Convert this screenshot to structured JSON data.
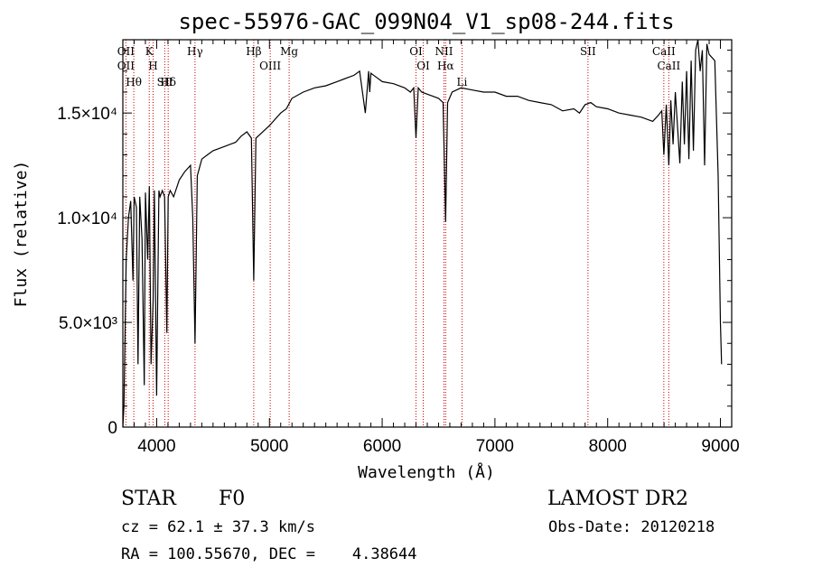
{
  "chart_data": {
    "type": "line",
    "title": "spec-55976-GAC_099N04_V1_sp08-244.fits",
    "xlabel": "Wavelength (Å)",
    "ylabel": "Flux (relative)",
    "xlim": [
      3700,
      9100
    ],
    "ylim": [
      0,
      18500
    ],
    "x_ticks": [
      {
        "value": 4000,
        "label": "4000"
      },
      {
        "value": 5000,
        "label": "5000"
      },
      {
        "value": 6000,
        "label": "6000"
      },
      {
        "value": 7000,
        "label": "7000"
      },
      {
        "value": 8000,
        "label": "8000"
      },
      {
        "value": 9000,
        "label": "9000"
      }
    ],
    "y_ticks": [
      {
        "value": 0,
        "label": "0"
      },
      {
        "value": 5000,
        "label": "5.0×10³"
      },
      {
        "value": 10000,
        "label": "1.0×10⁴"
      },
      {
        "value": 15000,
        "label": "1.5×10⁴"
      }
    ],
    "grid": false,
    "series": [
      {
        "color": "#000000",
        "x": [
          3700,
          3710,
          3730,
          3750,
          3770,
          3790,
          3800,
          3820,
          3835,
          3850,
          3870,
          3890,
          3900,
          3920,
          3935,
          3950,
          3968,
          3980,
          4000,
          4020,
          4030,
          4050,
          4070,
          4090,
          4102,
          4120,
          4150,
          4200,
          4250,
          4300,
          4320,
          4340,
          4360,
          4400,
          4450,
          4500,
          4600,
          4700,
          4750,
          4800,
          4840,
          4861,
          4880,
          4920,
          5000,
          5050,
          5100,
          5150,
          5200,
          5300,
          5400,
          5500,
          5600,
          5700,
          5750,
          5800,
          5850,
          5880,
          5890,
          5900,
          5950,
          6000,
          6100,
          6200,
          6250,
          6280,
          6300,
          6320,
          6350,
          6400,
          6450,
          6500,
          6540,
          6563,
          6580,
          6620,
          6700,
          6800,
          6900,
          7000,
          7100,
          7200,
          7300,
          7400,
          7500,
          7600,
          7700,
          7750,
          7800,
          7850,
          7900,
          8000,
          8100,
          8200,
          8300,
          8400,
          8450,
          8480,
          8498,
          8520,
          8542,
          8560,
          8580,
          8600,
          8640,
          8662,
          8680,
          8700,
          8720,
          8740,
          8760,
          8780,
          8800,
          8820,
          8840,
          8860,
          8880,
          8900,
          8950,
          8980,
          9000,
          9010
        ],
        "y": [
          0,
          1000,
          8000,
          10000,
          10800,
          7000,
          11000,
          10500,
          3000,
          11000,
          9000,
          2000,
          11200,
          8000,
          11500,
          3000,
          6000,
          11300,
          1500,
          11300,
          11000,
          11300,
          11000,
          4500,
          11000,
          11300,
          11000,
          11800,
          12200,
          12500,
          10000,
          4000,
          12000,
          12800,
          13000,
          13200,
          13400,
          13600,
          13900,
          14100,
          13800,
          7000,
          13800,
          14000,
          14400,
          14700,
          15000,
          15200,
          15700,
          16000,
          16200,
          16300,
          16500,
          16700,
          16800,
          17000,
          15000,
          17000,
          16000,
          16900,
          16700,
          16500,
          16400,
          16200,
          16000,
          16200,
          13800,
          16200,
          16000,
          15900,
          15800,
          15700,
          15500,
          9800,
          15500,
          16000,
          16200,
          16100,
          16000,
          16000,
          15800,
          15800,
          15600,
          15500,
          15400,
          15100,
          15200,
          15000,
          15400,
          15500,
          15300,
          15200,
          15000,
          14900,
          14800,
          14600,
          14900,
          15100,
          13000,
          15400,
          12500,
          15600,
          13500,
          16000,
          12600,
          16500,
          13500,
          17000,
          12800,
          17500,
          13200,
          18000,
          18500,
          17000,
          18000,
          12500,
          18300,
          17800,
          17500,
          12000,
          5000,
          3000
        ]
      }
    ],
    "line_markers": [
      {
        "wavelength": 3727,
        "labels": [
          "OII",
          "OII"
        ]
      },
      {
        "wavelength": 3797,
        "labels": [
          "Hθ"
        ]
      },
      {
        "wavelength": 3934,
        "labels": [
          "K"
        ]
      },
      {
        "wavelength": 3968,
        "labels": [
          "H"
        ]
      },
      {
        "wavelength": 4072,
        "labels": [
          "SII"
        ]
      },
      {
        "wavelength": 4102,
        "labels": [
          "Hδ"
        ]
      },
      {
        "wavelength": 4340,
        "labels": [
          "Hγ"
        ]
      },
      {
        "wavelength": 4861,
        "labels": [
          "Hβ"
        ]
      },
      {
        "wavelength": 5007,
        "labels": [
          "OIII"
        ]
      },
      {
        "wavelength": 5175,
        "labels": [
          "Mg"
        ]
      },
      {
        "wavelength": 6300,
        "labels": [
          "OI"
        ]
      },
      {
        "wavelength": 6364,
        "labels": [
          "OI"
        ]
      },
      {
        "wavelength": 6548,
        "labels": [
          "NII"
        ]
      },
      {
        "wavelength": 6563,
        "labels": [
          "Hα"
        ]
      },
      {
        "wavelength": 6708,
        "labels": [
          "Li"
        ]
      },
      {
        "wavelength": 7825,
        "labels": [
          "SII"
        ]
      },
      {
        "wavelength": 8498,
        "labels": [
          "CaII"
        ]
      },
      {
        "wavelength": 8542,
        "labels": [
          "CaII"
        ]
      }
    ],
    "marker_color": "#cc0000"
  },
  "info": {
    "class": "STAR",
    "subclass": "F0",
    "survey": "LAMOST DR2",
    "cz": "cz = 62.1 ± 37.3 km/s",
    "obs_date": "Obs-Date: 20120218",
    "coords": "RA = 100.55670, DEC =    4.38644"
  }
}
